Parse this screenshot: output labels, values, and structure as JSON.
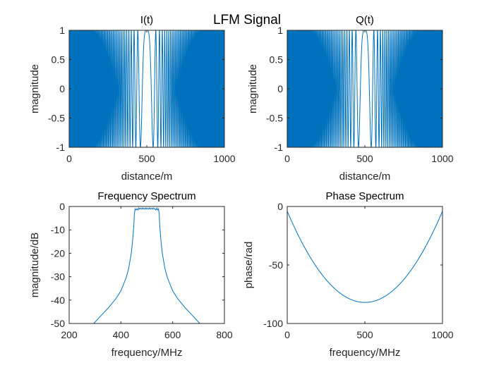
{
  "figure_title": "LFM Signal",
  "line_color": "#0072BD",
  "chart_data": [
    {
      "id": "i",
      "type": "line",
      "title": "I(t)",
      "xlabel": "distance/m",
      "ylabel": "magnitude",
      "xlim": [
        0,
        1000
      ],
      "ylim": [
        -1,
        1
      ],
      "xticks": [
        0,
        500,
        1000
      ],
      "yticks": [
        -1,
        -0.5,
        0,
        0.5,
        1
      ],
      "series": [
        {
          "name": "I(t)",
          "formula": "cos(pi*k*(x-500)^2)",
          "k": 0.0006,
          "x_range": [
            0,
            1000
          ],
          "samples": 6000
        }
      ]
    },
    {
      "id": "q",
      "type": "line",
      "title": "Q(t)",
      "xlabel": "distance/m",
      "ylabel": "magnitude",
      "xlim": [
        0,
        1000
      ],
      "ylim": [
        -1,
        1
      ],
      "xticks": [
        0,
        500,
        1000
      ],
      "yticks": [
        -1,
        -0.5,
        0,
        0.5,
        1
      ],
      "series": [
        {
          "name": "Q(t)",
          "formula": "sin(pi*k*(x-500)^2 + pi/2)",
          "k": 0.0006,
          "x_range": [
            0,
            1000
          ],
          "samples": 6000
        }
      ]
    },
    {
      "id": "freq",
      "type": "line",
      "title": "Frequency Spectrum",
      "xlabel": "frequency/MHz",
      "ylabel": "magnitude/dB",
      "xlim": [
        200,
        800
      ],
      "ylim": [
        -50,
        0
      ],
      "xticks": [
        200,
        400,
        600,
        800
      ],
      "yticks": [
        -50,
        -40,
        -30,
        -20,
        -10,
        0
      ],
      "series": [
        {
          "name": "spectrum",
          "shape": "band-pass with flat top and ripple",
          "band_edges": [
            450,
            550
          ],
          "ripple_db": 1.5,
          "points": [
            [
              295,
              -50
            ],
            [
              320,
              -47
            ],
            [
              350,
              -43.5
            ],
            [
              380,
              -39.5
            ],
            [
              400,
              -36
            ],
            [
              420,
              -30.5
            ],
            [
              430,
              -26.5
            ],
            [
              440,
              -20
            ],
            [
              445,
              -15
            ],
            [
              450,
              -8
            ],
            [
              452,
              -3
            ],
            [
              455,
              -1
            ],
            [
              545,
              -1
            ],
            [
              548,
              -3
            ],
            [
              550,
              -8
            ],
            [
              555,
              -15
            ],
            [
              560,
              -20
            ],
            [
              570,
              -26.5
            ],
            [
              580,
              -30.5
            ],
            [
              600,
              -36
            ],
            [
              620,
              -39.5
            ],
            [
              650,
              -43.5
            ],
            [
              680,
              -47
            ],
            [
              705,
              -50
            ]
          ]
        }
      ]
    },
    {
      "id": "phase",
      "type": "line",
      "title": "Phase Spectrum",
      "xlabel": "frequency/MHz",
      "ylabel": "phase/rad",
      "xlim": [
        0,
        1000
      ],
      "ylim": [
        -100,
        0
      ],
      "xticks": [
        0,
        500,
        1000
      ],
      "yticks": [
        -100,
        -50,
        0
      ],
      "series": [
        {
          "name": "phase",
          "formula": "-82 + 78*((x-500)/500)^2",
          "x_range": [
            0,
            1000
          ],
          "minimum": [
            500,
            -82
          ],
          "endpoints": [
            [
              0,
              -4
            ],
            [
              1000,
              -4
            ]
          ]
        }
      ]
    }
  ]
}
